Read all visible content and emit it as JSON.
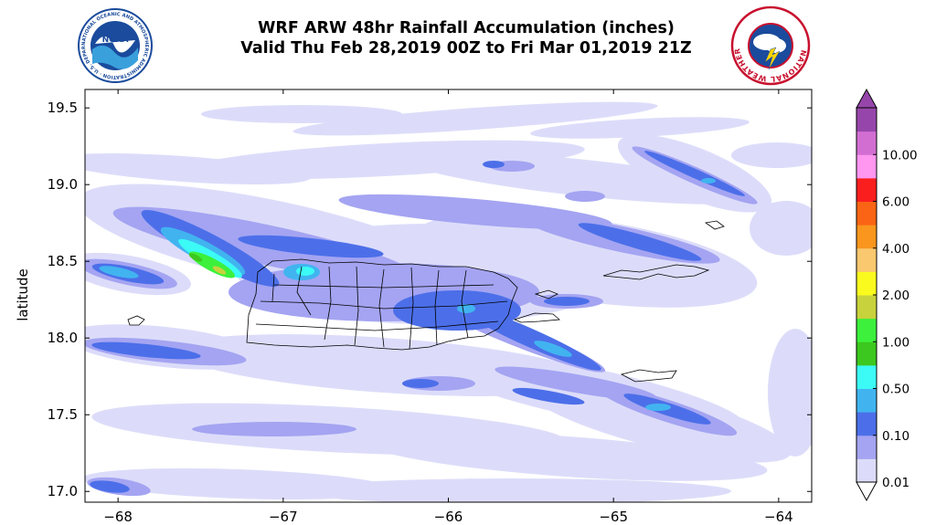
{
  "chart_data": {
    "type": "heatmap",
    "title": "WRF ARW 48hr Rainfall Accumulation (inches)",
    "subtitle": "Valid Thu Feb 28,2019 00Z to Fri Mar 01,2019 21Z",
    "ylabel": "latitude",
    "xlabel": "",
    "xlim": [
      -68.2,
      -63.8
    ],
    "ylim": [
      16.93,
      19.62
    ],
    "x_ticks": [
      -68,
      -67,
      -66,
      -65,
      -64
    ],
    "x_tick_labels": [
      "−68",
      "−67",
      "−66",
      "−65",
      "−64"
    ],
    "y_ticks": [
      17.0,
      17.5,
      18.0,
      18.5,
      19.0,
      19.5
    ],
    "y_tick_labels": [
      "17.0",
      "17.5",
      "18.0",
      "18.5",
      "19.0",
      "19.5"
    ],
    "colorbar": {
      "levels": [
        0.01,
        0.05,
        0.1,
        0.25,
        0.5,
        0.75,
        1.0,
        1.5,
        2.0,
        3.0,
        4.0,
        5.0,
        6.0,
        8.0,
        10.0,
        15.0
      ],
      "labels": [
        "0.01",
        "0.10",
        "0.50",
        "1.00",
        "2.00",
        "4.00",
        "6.00",
        "10.00"
      ],
      "colors": [
        "#dcdcfa",
        "#a4a4f2",
        "#4c6fe9",
        "#41b4f0",
        "#3cfaf5",
        "#3cc81e",
        "#3cf03c",
        "#c8d23c",
        "#fafa1e",
        "#fac86e",
        "#fa961e",
        "#fa6414",
        "#fa1e1e",
        "#ff96f0",
        "#d26ed2",
        "#9646aa"
      ],
      "extend": "both"
    },
    "grid": false,
    "legend": "colorbar-right",
    "field_cells": [
      {
        "lon": -67.55,
        "lat": 18.45,
        "level": 6
      },
      {
        "lon": -67.5,
        "lat": 18.42,
        "level": 6
      },
      {
        "lon": -67.4,
        "lat": 18.38,
        "level": 6
      },
      {
        "lon": -67.45,
        "lat": 18.41,
        "level": 7
      },
      {
        "lon": -67.3,
        "lat": 18.34,
        "level": 5
      },
      {
        "lon": -67.65,
        "lat": 18.52,
        "level": 4
      },
      {
        "lon": -67.2,
        "lat": 18.3,
        "level": 4
      },
      {
        "lon": -67.9,
        "lat": 18.42,
        "level": 3
      },
      {
        "lon": -66.8,
        "lat": 18.42,
        "level": 3
      },
      {
        "lon": -65.85,
        "lat": 18.15,
        "level": 3
      },
      {
        "lon": -65.2,
        "lat": 17.88,
        "level": 3
      },
      {
        "lon": -64.8,
        "lat": 17.48,
        "level": 3
      },
      {
        "lon": -64.4,
        "lat": 19.02,
        "level": 3
      },
      {
        "lon": -68.1,
        "lat": 17.03,
        "level": 3
      },
      {
        "lon": -68.05,
        "lat": 17.95,
        "level": 2
      }
    ]
  },
  "logos": {
    "left": {
      "name": "NOAA",
      "ring_text": "NATIONAL OCEANIC AND ATMOSPHERIC ADMINISTRATION · U.S. DEPARTMENT OF COMMERCE"
    },
    "right": {
      "ring_text": "NATIONAL WEATHER SERVICE"
    }
  },
  "colors": {
    "noaa_blue": "#1a4b9c",
    "nws_red": "#c8102e",
    "axis": "#000000"
  }
}
